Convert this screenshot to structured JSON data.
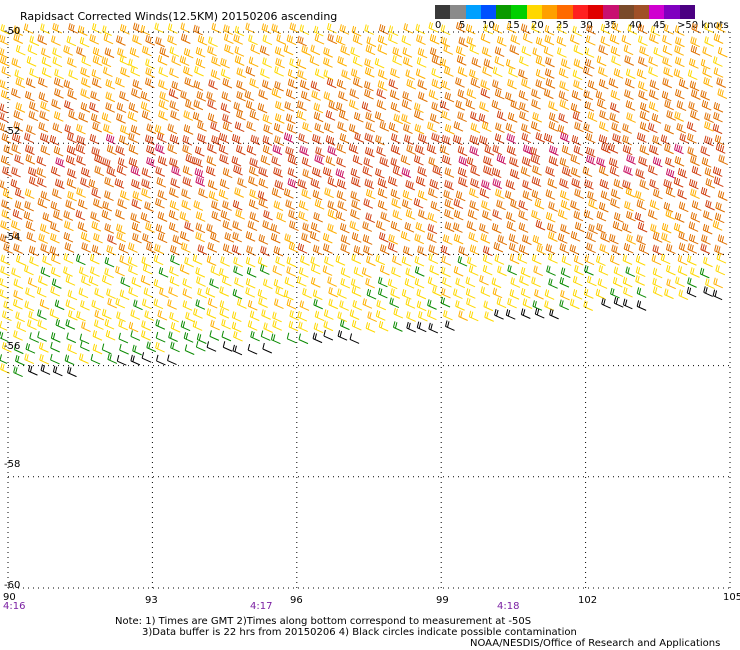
{
  "title": "Rapidsact Corrected Winds(12.5KM) 20150206 ascending",
  "legend": {
    "labels": [
      "0",
      "5",
      "10",
      "15",
      "20",
      "25",
      "30",
      "35",
      "40",
      "45",
      ">50 knots"
    ],
    "colors": [
      "#3a3a3a",
      "#8a8a8a",
      "#00a0ff",
      "#0050ff",
      "#0a9a00",
      "#00d000",
      "#ffd800",
      "#ffa000",
      "#ff6a00",
      "#ff2020",
      "#e00000",
      "#c81070",
      "#7a4a2a",
      "#a05028",
      "#d000d0",
      "#8000c0",
      "#4b0082"
    ]
  },
  "axes": {
    "x_ticks": [
      "90",
      "93",
      "96",
      "99",
      "102",
      "105"
    ],
    "y_ticks": [
      "-50",
      "-52",
      "-54",
      "-56",
      "-58",
      "-60"
    ],
    "times": [
      "4:16",
      "4:17",
      "4:18"
    ]
  },
  "notes": {
    "line1": "Note: 1) Times are GMT 2)Times along bottom correspond to measurement at -50S",
    "line2": "3)Data buffer is 22 hrs from 20150206 4) Black circles indicate possible contamination",
    "line3": "NOAA/NESDIS/Office of Research and Applications"
  },
  "chart_data": {
    "type": "wind-barb map",
    "x_range": [
      90,
      105
    ],
    "y_range": [
      -60,
      -50
    ],
    "xlabel": "",
    "ylabel": "",
    "wind_bands_knots": [
      {
        "lat_range": [
          -50.0,
          -51.0
        ],
        "speed": 25
      },
      {
        "lat_range": [
          -51.0,
          -52.0
        ],
        "speed": 30
      },
      {
        "lat_range": [
          -52.0,
          -53.0
        ],
        "speed": 35
      },
      {
        "lat_range": [
          -53.0,
          -54.0
        ],
        "speed": 30
      },
      {
        "lat_range": [
          -54.0,
          -55.5
        ],
        "speed": 20
      },
      {
        "lat_range": [
          -55.5,
          -56.3
        ],
        "speed": 15
      }
    ]
  }
}
